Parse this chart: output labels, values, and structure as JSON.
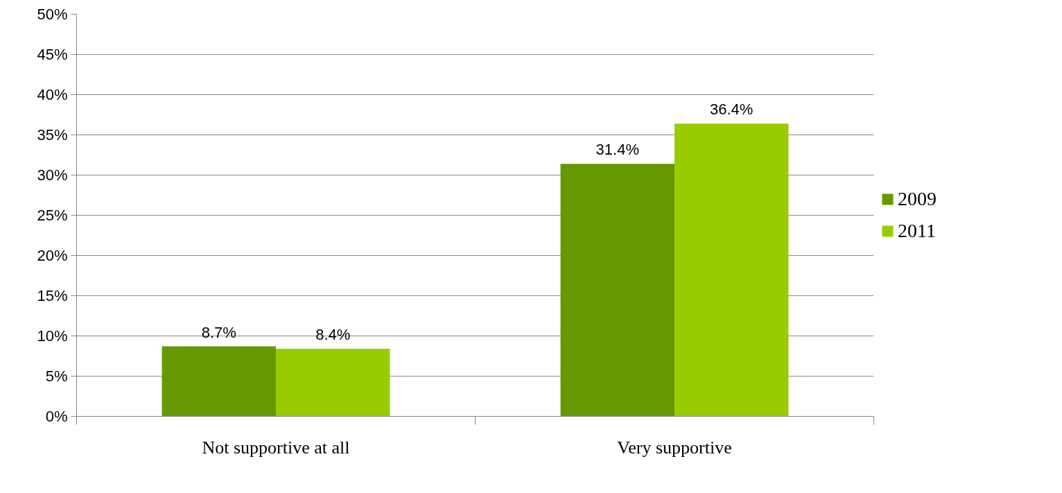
{
  "chart_data": {
    "type": "bar",
    "categories": [
      "Not supportive at all",
      "Very supportive"
    ],
    "series": [
      {
        "name": "2009",
        "color": "#669900",
        "values": [
          8.7,
          31.4
        ],
        "value_labels": [
          "8.7%",
          "31.4%"
        ]
      },
      {
        "name": "2011",
        "color": "#99cc00",
        "values": [
          8.4,
          36.4
        ],
        "value_labels": [
          "8.4%",
          "36.4%"
        ]
      }
    ],
    "ylim": [
      0,
      50
    ],
    "yticks": [
      {
        "value": 0,
        "label": "0%"
      },
      {
        "value": 5,
        "label": "5%"
      },
      {
        "value": 10,
        "label": "10%"
      },
      {
        "value": 15,
        "label": "15%"
      },
      {
        "value": 20,
        "label": "20%"
      },
      {
        "value": 25,
        "label": "25%"
      },
      {
        "value": 30,
        "label": "30%"
      },
      {
        "value": 35,
        "label": "35%"
      },
      {
        "value": 40,
        "label": "40%"
      },
      {
        "value": 45,
        "label": "45%"
      },
      {
        "value": 50,
        "label": "50%"
      }
    ],
    "grid": "y",
    "legend": "right"
  }
}
